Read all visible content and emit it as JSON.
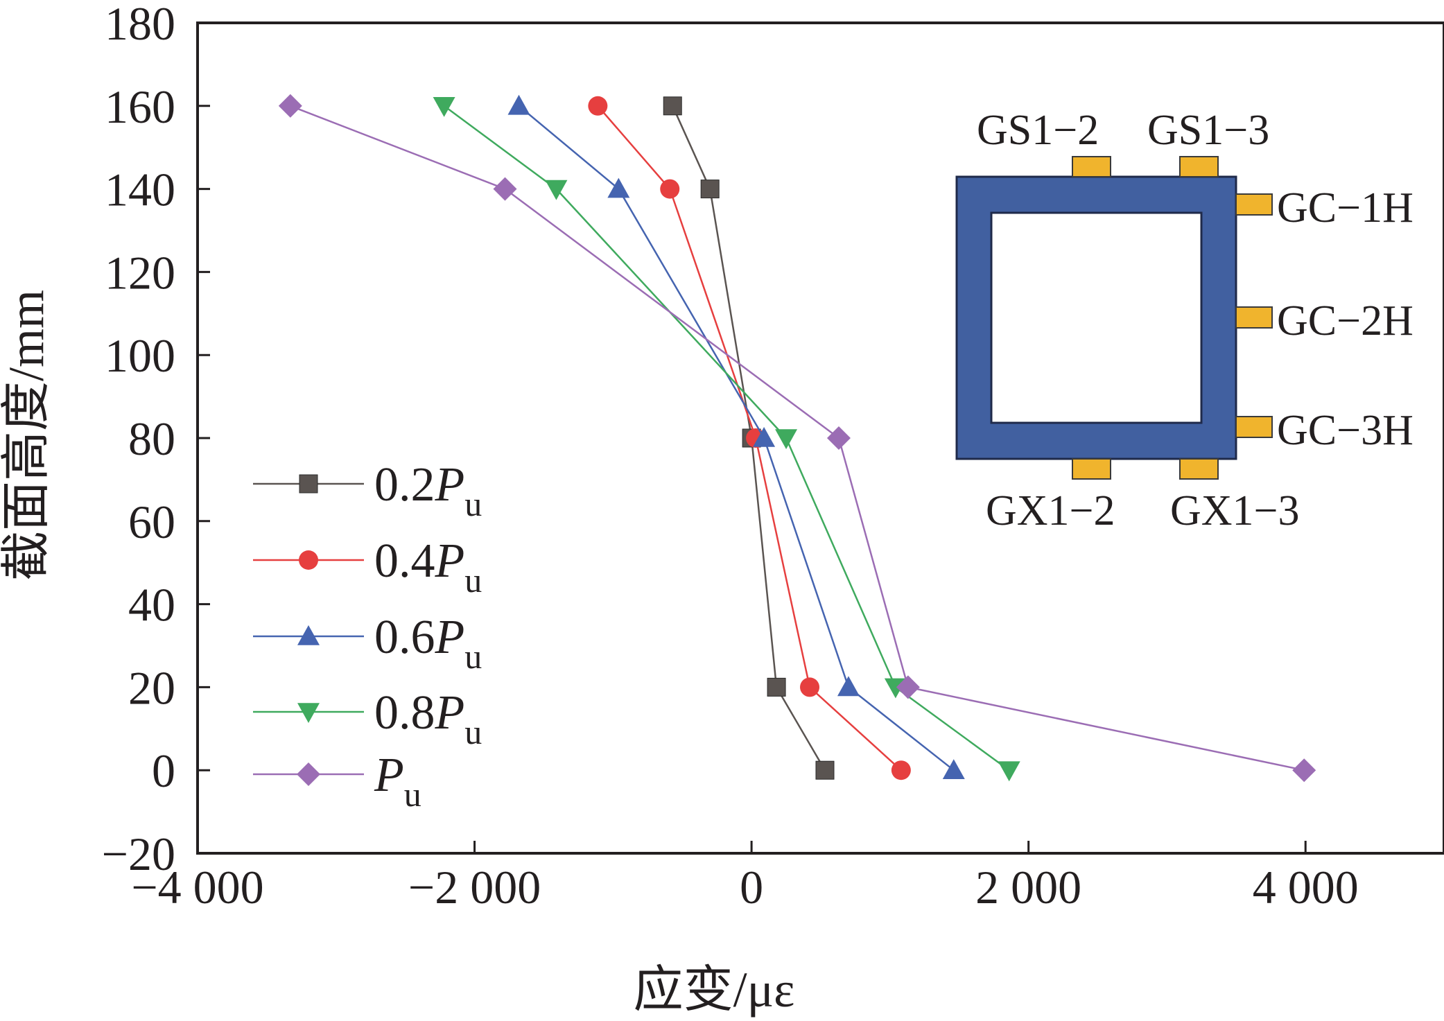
{
  "chart_data": {
    "type": "line",
    "title": "",
    "xlabel": "应变/με",
    "ylabel": "截面高度/mm",
    "xlim": [
      -4000,
      5000
    ],
    "ylim": [
      -20,
      180
    ],
    "x_ticks": [
      -4000,
      -2000,
      0,
      2000,
      4000
    ],
    "x_tick_labels": [
      "−4 000",
      "−2 000",
      "0",
      "2 000",
      "4 000"
    ],
    "y_ticks": [
      -20,
      0,
      20,
      40,
      60,
      80,
      100,
      120,
      140,
      160,
      180
    ],
    "y_tick_labels": [
      "−20",
      "0",
      "20",
      "40",
      "60",
      "80",
      "100",
      "120",
      "140",
      "160",
      "180"
    ],
    "grid": false,
    "legend_position": "bottom-left",
    "series": [
      {
        "name": "0.2Pu",
        "legend_main": "0.2",
        "legend_italic": "P",
        "legend_sub": "u",
        "color": "#5a5451",
        "marker": "square",
        "points": [
          [
            -570,
            160
          ],
          [
            -300,
            140
          ],
          [
            0,
            80
          ],
          [
            180,
            20
          ],
          [
            530,
            0
          ]
        ]
      },
      {
        "name": "0.4Pu",
        "legend_main": "0.4",
        "legend_italic": "P",
        "legend_sub": "u",
        "color": "#e63f3f",
        "marker": "circle",
        "points": [
          [
            -1110,
            160
          ],
          [
            -590,
            140
          ],
          [
            30,
            80
          ],
          [
            420,
            20
          ],
          [
            1080,
            0
          ]
        ]
      },
      {
        "name": "0.6Pu",
        "legend_main": "0.6",
        "legend_italic": "P",
        "legend_sub": "u",
        "color": "#4564b0",
        "marker": "triangle-up",
        "points": [
          [
            -1680,
            160
          ],
          [
            -960,
            140
          ],
          [
            90,
            80
          ],
          [
            700,
            20
          ],
          [
            1460,
            0
          ]
        ]
      },
      {
        "name": "0.8Pu",
        "legend_main": "0.8",
        "legend_italic": "P",
        "legend_sub": "u",
        "color": "#3faa5e",
        "marker": "triangle-down",
        "points": [
          [
            -2220,
            160
          ],
          [
            -1410,
            140
          ],
          [
            250,
            80
          ],
          [
            1040,
            20
          ],
          [
            1860,
            0
          ]
        ]
      },
      {
        "name": "Pu",
        "legend_main": "",
        "legend_italic": "P",
        "legend_sub": "u",
        "color": "#9b6db4",
        "marker": "diamond",
        "points": [
          [
            -3330,
            160
          ],
          [
            -1780,
            140
          ],
          [
            630,
            80
          ],
          [
            1130,
            20
          ],
          [
            3990,
            0
          ]
        ]
      }
    ]
  },
  "inset": {
    "labels": {
      "gs1_2": "GS1−2",
      "gs1_3": "GS1−3",
      "gc_1h": "GC−1H",
      "gc_2h": "GC−2H",
      "gc_3h": "GC−3H",
      "gx1_2": "GX1−2",
      "gx1_3": "GX1−3"
    },
    "section_color": "#4160a0",
    "gauge_color": "#f0b42d"
  }
}
